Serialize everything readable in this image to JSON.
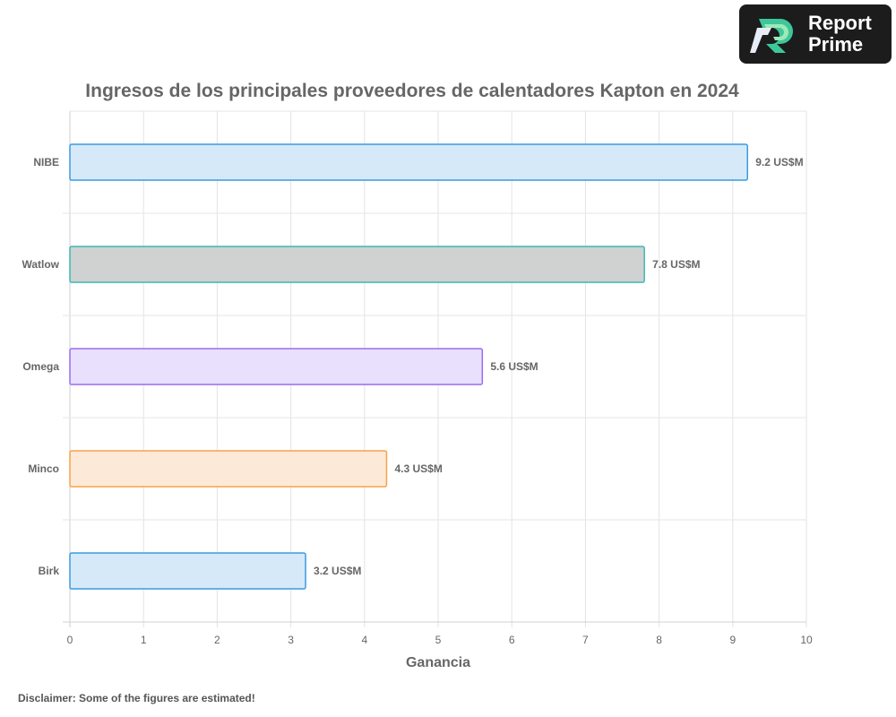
{
  "logo": {
    "line1": "Report",
    "line2": "Prime"
  },
  "disclaimer": "Disclaimer: Some of the figures are estimated!",
  "chart_data": {
    "type": "bar",
    "orientation": "horizontal",
    "title": "Ingresos de los principales proveedores de calentadores Kapton en 2024",
    "xlabel": "Ganancia",
    "ylabel": "",
    "xlim": [
      0,
      10
    ],
    "xticks": [
      0,
      1,
      2,
      3,
      4,
      5,
      6,
      7,
      8,
      9,
      10
    ],
    "grid": true,
    "legend": "none",
    "categories": [
      "NIBE",
      "Watlow",
      "Omega",
      "Minco",
      "Birk"
    ],
    "values": [
      9.2,
      7.8,
      5.6,
      4.3,
      3.2
    ],
    "value_labels": [
      "9.2 US$M",
      "7.8 US$M",
      "5.6 US$M",
      "4.3 US$M",
      "3.2 US$M"
    ],
    "unit": "US$M",
    "colors": {
      "fill": [
        "#d6e9f8",
        "#d0d1d1",
        "#e8e0fc",
        "#fde9d7",
        "#d6e9f8"
      ],
      "stroke": [
        "#3a9be0",
        "#3cb8b4",
        "#9a6cf0",
        "#f5a24a",
        "#3a9be0"
      ]
    }
  }
}
